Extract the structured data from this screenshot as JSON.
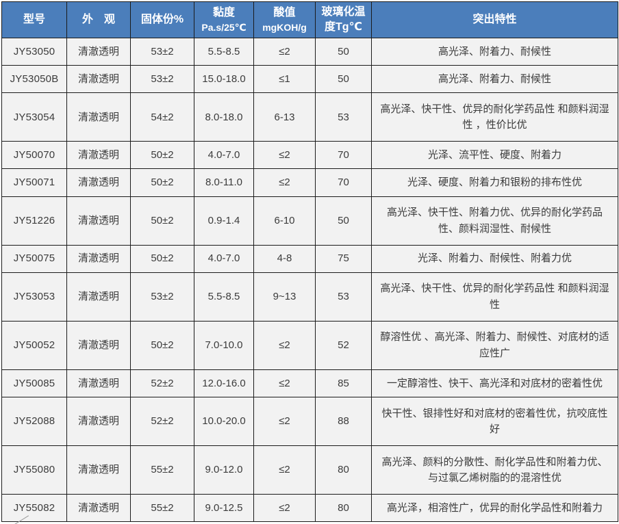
{
  "table": {
    "colors": {
      "header_bg": "#4b7ebb",
      "header_text": "#ffffff",
      "cell_bg": "#f2f2f2",
      "border": "#1a1a1a",
      "cell_text": "#3b3b3b"
    },
    "columns": [
      {
        "key": "model",
        "label": "型号",
        "sub": ""
      },
      {
        "key": "appearance",
        "label": "外　观",
        "sub": ""
      },
      {
        "key": "solid",
        "label": "固体份%",
        "sub": ""
      },
      {
        "key": "viscosity",
        "label": "黏度",
        "sub": "Pa.s/25℃"
      },
      {
        "key": "acid",
        "label": "酸值",
        "sub": "mgKOH/g"
      },
      {
        "key": "tg",
        "label": "玻璃化温度Tg℃",
        "sub": ""
      },
      {
        "key": "features",
        "label": "突出特性",
        "sub": ""
      }
    ],
    "rows": [
      {
        "model": "JY53050",
        "appearance": "清澈透明",
        "solid": "53±2",
        "viscosity": "5.5-8.5",
        "acid": "≤2",
        "tg": "50",
        "features": "高光泽、附着力、耐候性"
      },
      {
        "model": "JY53050B",
        "appearance": "清澈透明",
        "solid": "53±2",
        "viscosity": "15.0-18.0",
        "acid": "≤1",
        "tg": "50",
        "features": "高光泽、附着力、耐候性"
      },
      {
        "model": "JY53054",
        "appearance": "清澈透明",
        "solid": "54±2",
        "viscosity": "8.0-18.0",
        "acid": "6-13",
        "tg": "53",
        "features": "高光泽、快干性、优异的耐化学药品性 和颜料润湿性 ，性价比优"
      },
      {
        "model": "JY50070",
        "appearance": "清澈透明",
        "solid": "50±2",
        "viscosity": "4.0-7.0",
        "acid": "≤2",
        "tg": "70",
        "features": "光泽、流平性、硬度、附着力"
      },
      {
        "model": "JY50071",
        "appearance": "清澈透明",
        "solid": "50±2",
        "viscosity": "8.0-11.0",
        "acid": "≤2",
        "tg": "70",
        "features": "光泽、硬度、附着力和银粉的排布性优"
      },
      {
        "model": "JY51226",
        "appearance": "清澈透明",
        "solid": "50±2",
        "viscosity": "0.9-1.4",
        "acid": "6-10",
        "tg": "50",
        "features": "高光泽、快干性、附着力优、优异的耐化学药品性、颜料润湿性、耐候性"
      },
      {
        "model": "JY50075",
        "appearance": "清澈透明",
        "solid": "50±2",
        "viscosity": "4.0-7.0",
        "acid": "4-8",
        "tg": "75",
        "features": "光泽、附着力、耐候性、附着力优"
      },
      {
        "model": "JY53053",
        "appearance": "清澈透明",
        "solid": "53±2",
        "viscosity": "5.5-8.5",
        "acid": "9~13",
        "tg": "53",
        "features": "高光泽、快干性、优异的耐化学药品性 和颜料润湿性"
      },
      {
        "model": "JY50052",
        "appearance": "清澈透明",
        "solid": "50±2",
        "viscosity": "7.0-10.0",
        "acid": "≤2",
        "tg": "52",
        "features": "醇溶性优 、高光泽、附着力、耐候性、对底材的适应性广"
      },
      {
        "model": "JY50085",
        "appearance": "清澈透明",
        "solid": "52±2",
        "viscosity": "12.0-16.0",
        "acid": "≤2",
        "tg": "85",
        "features": "一定醇溶性、快干、高光泽和对底材的密着性优"
      },
      {
        "model": "JY52088",
        "appearance": "清澈透明",
        "solid": "52±2",
        "viscosity": "10.0-20.0",
        "acid": "≤2",
        "tg": "88",
        "features": "快干性、银排性好和对底材的密着性优，抗咬底性好"
      },
      {
        "model": "JY55080",
        "appearance": "清澈透明",
        "solid": "55±2",
        "viscosity": "9.0-12.0",
        "acid": "≤2",
        "tg": "80",
        "features": "高光泽、颜料的分散性、耐化学品性和附着力优、与过氯乙烯树脂的的混溶性优"
      },
      {
        "model": "JY55082",
        "appearance": "清澈透明",
        "solid": "55±2",
        "viscosity": "9.0-12.5",
        "acid": "≤2",
        "tg": "80",
        "features": "高光泽，相溶性广，优异的耐化学品性和附着力"
      }
    ]
  }
}
